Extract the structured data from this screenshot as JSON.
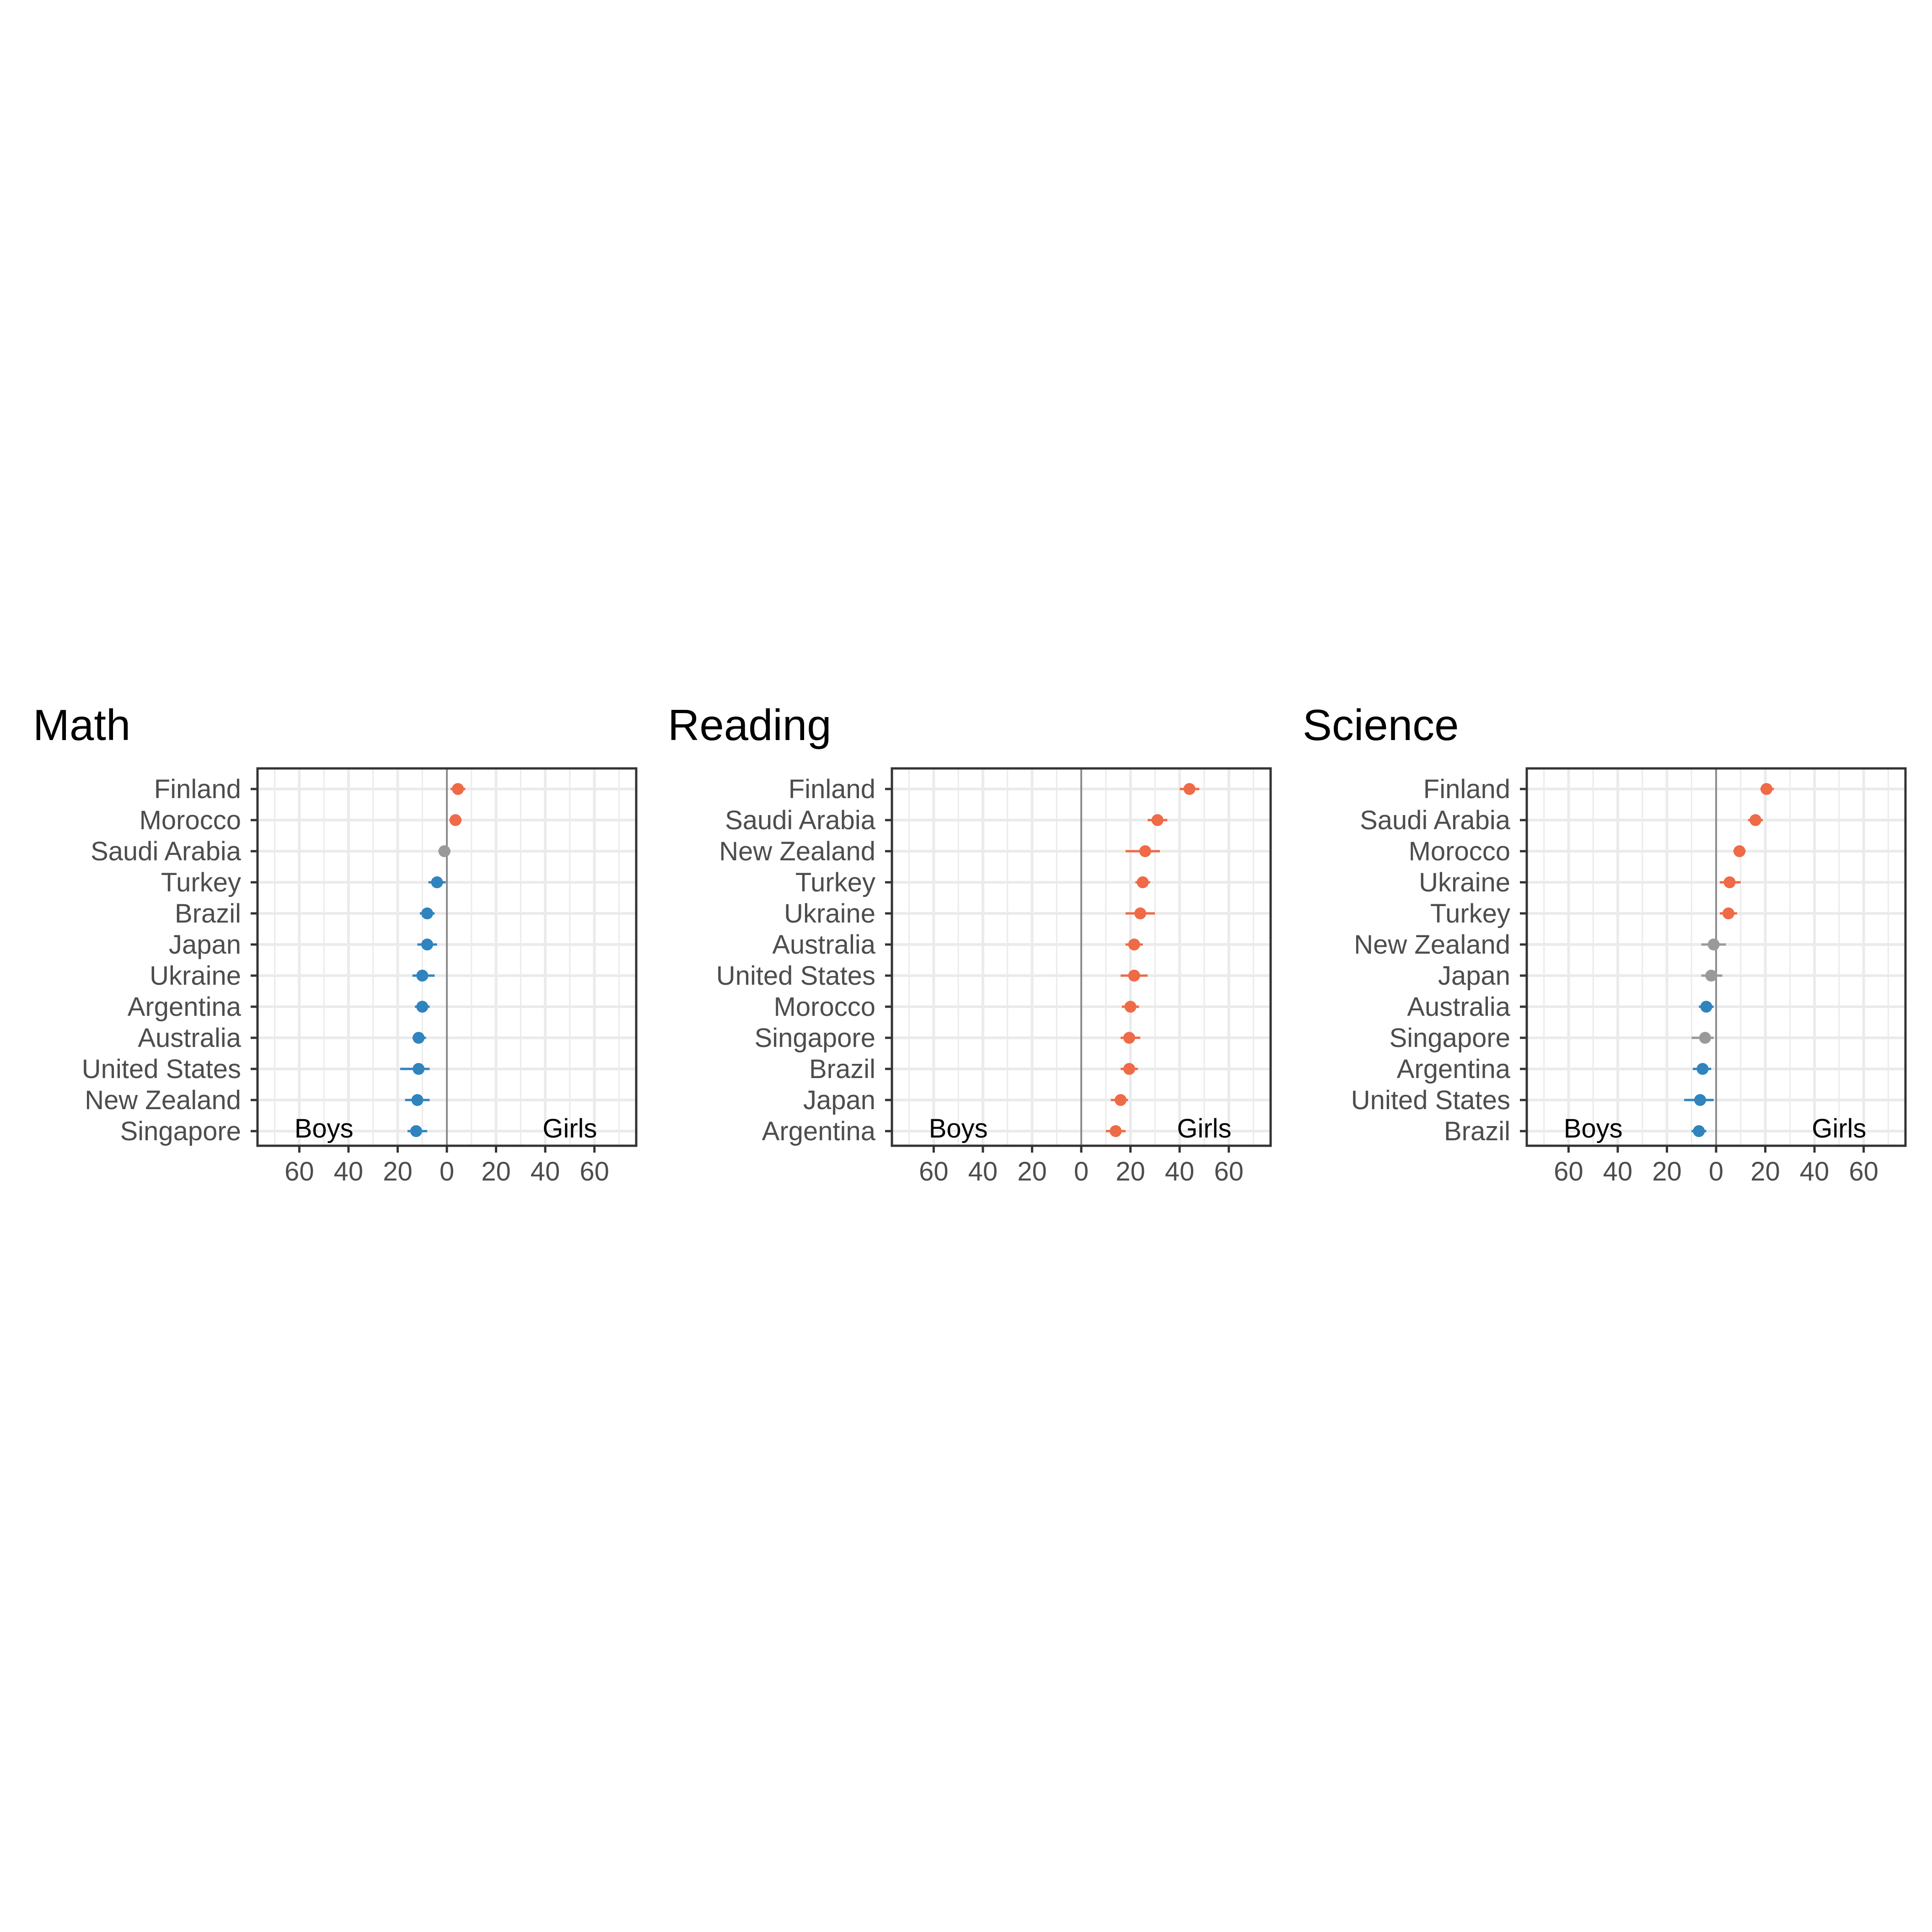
{
  "chart_data": [
    {
      "type": "scatter",
      "title": "Math",
      "xlim": [
        -77,
        77
      ],
      "x_ticks": [
        -60,
        -40,
        -20,
        0,
        20,
        40,
        60
      ],
      "x_tick_labels": [
        "60",
        "40",
        "20",
        "0",
        "20",
        "40",
        "60"
      ],
      "side_labels": {
        "left": "Boys",
        "right": "Girls"
      },
      "grid": true,
      "points": [
        {
          "country": "Finland",
          "value": 4.5,
          "lower": 1.5,
          "upper": 7.5,
          "group": "girls"
        },
        {
          "country": "Morocco",
          "value": 3.5,
          "lower": 1,
          "upper": 6,
          "group": "girls"
        },
        {
          "country": "Saudi Arabia",
          "value": -1,
          "lower": -3.5,
          "upper": 1.5,
          "group": "ns"
        },
        {
          "country": "Turkey",
          "value": -4,
          "lower": -7.5,
          "upper": -0.5,
          "group": "boys"
        },
        {
          "country": "Brazil",
          "value": -8,
          "lower": -11,
          "upper": -5,
          "group": "boys"
        },
        {
          "country": "Japan",
          "value": -8,
          "lower": -12,
          "upper": -4,
          "group": "boys"
        },
        {
          "country": "Ukraine",
          "value": -10,
          "lower": -14,
          "upper": -5,
          "group": "boys"
        },
        {
          "country": "Argentina",
          "value": -10,
          "lower": -13,
          "upper": -7,
          "group": "boys"
        },
        {
          "country": "Australia",
          "value": -11.5,
          "lower": -14,
          "upper": -8.5,
          "group": "boys"
        },
        {
          "country": "United States",
          "value": -11.5,
          "lower": -19,
          "upper": -7,
          "group": "boys"
        },
        {
          "country": "New Zealand",
          "value": -12,
          "lower": -17,
          "upper": -7,
          "group": "boys"
        },
        {
          "country": "Singapore",
          "value": -12.5,
          "lower": -16,
          "upper": -8,
          "group": "boys"
        }
      ]
    },
    {
      "type": "scatter",
      "title": "Reading",
      "xlim": [
        -77,
        77
      ],
      "x_ticks": [
        -60,
        -40,
        -20,
        0,
        20,
        40,
        60
      ],
      "x_tick_labels": [
        "60",
        "40",
        "20",
        "0",
        "20",
        "40",
        "60"
      ],
      "side_labels": {
        "left": "Boys",
        "right": "Girls"
      },
      "grid": true,
      "points": [
        {
          "country": "Finland",
          "value": 44,
          "lower": 40,
          "upper": 48,
          "group": "girls"
        },
        {
          "country": "Saudi Arabia",
          "value": 31,
          "lower": 27,
          "upper": 35,
          "group": "girls"
        },
        {
          "country": "New Zealand",
          "value": 26,
          "lower": 18,
          "upper": 32,
          "group": "girls"
        },
        {
          "country": "Turkey",
          "value": 25,
          "lower": 22,
          "upper": 28,
          "group": "girls"
        },
        {
          "country": "Ukraine",
          "value": 24,
          "lower": 18,
          "upper": 30,
          "group": "girls"
        },
        {
          "country": "Australia",
          "value": 21.5,
          "lower": 18,
          "upper": 25,
          "group": "girls"
        },
        {
          "country": "United States",
          "value": 21.5,
          "lower": 16,
          "upper": 27,
          "group": "girls"
        },
        {
          "country": "Morocco",
          "value": 20,
          "lower": 16.5,
          "upper": 23.5,
          "group": "girls"
        },
        {
          "country": "Singapore",
          "value": 19.5,
          "lower": 16,
          "upper": 24,
          "group": "girls"
        },
        {
          "country": "Brazil",
          "value": 19.5,
          "lower": 16,
          "upper": 23,
          "group": "girls"
        },
        {
          "country": "Japan",
          "value": 16,
          "lower": 12,
          "upper": 19,
          "group": "girls"
        },
        {
          "country": "Argentina",
          "value": 14,
          "lower": 10,
          "upper": 18,
          "group": "girls"
        }
      ]
    },
    {
      "type": "scatter",
      "title": "Science",
      "xlim": [
        -77,
        77
      ],
      "x_ticks": [
        -60,
        -40,
        -20,
        0,
        20,
        40,
        60
      ],
      "x_tick_labels": [
        "60",
        "40",
        "20",
        "0",
        "20",
        "40",
        "60"
      ],
      "side_labels": {
        "left": "Boys",
        "right": "Girls"
      },
      "grid": true,
      "points": [
        {
          "country": "Finland",
          "value": 20.5,
          "lower": 18,
          "upper": 23.5,
          "group": "girls"
        },
        {
          "country": "Saudi Arabia",
          "value": 16,
          "lower": 13,
          "upper": 19,
          "group": "girls"
        },
        {
          "country": "Morocco",
          "value": 9.5,
          "lower": 7,
          "upper": 12,
          "group": "girls"
        },
        {
          "country": "Ukraine",
          "value": 5.5,
          "lower": 1.5,
          "upper": 10,
          "group": "girls"
        },
        {
          "country": "Turkey",
          "value": 5,
          "lower": 1.5,
          "upper": 8.5,
          "group": "girls"
        },
        {
          "country": "New Zealand",
          "value": -1,
          "lower": -6,
          "upper": 4,
          "group": "ns"
        },
        {
          "country": "Japan",
          "value": -2,
          "lower": -6,
          "upper": 2.5,
          "group": "ns"
        },
        {
          "country": "Australia",
          "value": -4,
          "lower": -7,
          "upper": -1,
          "group": "boys"
        },
        {
          "country": "Singapore",
          "value": -4.5,
          "lower": -10,
          "upper": -1,
          "group": "ns"
        },
        {
          "country": "Argentina",
          "value": -5.5,
          "lower": -9.5,
          "upper": -2,
          "group": "boys"
        },
        {
          "country": "United States",
          "value": -6.5,
          "lower": -13,
          "upper": -1,
          "group": "boys"
        },
        {
          "country": "Brazil",
          "value": -7,
          "lower": -10,
          "upper": -4,
          "group": "boys"
        }
      ]
    }
  ],
  "colors": {
    "girls": "#ef6a47",
    "boys": "#2f84be",
    "ns": "#9a9a9a",
    "zero_line": "#8c8c8c",
    "grid": "#ebebeb",
    "panel_border": "#333333"
  }
}
